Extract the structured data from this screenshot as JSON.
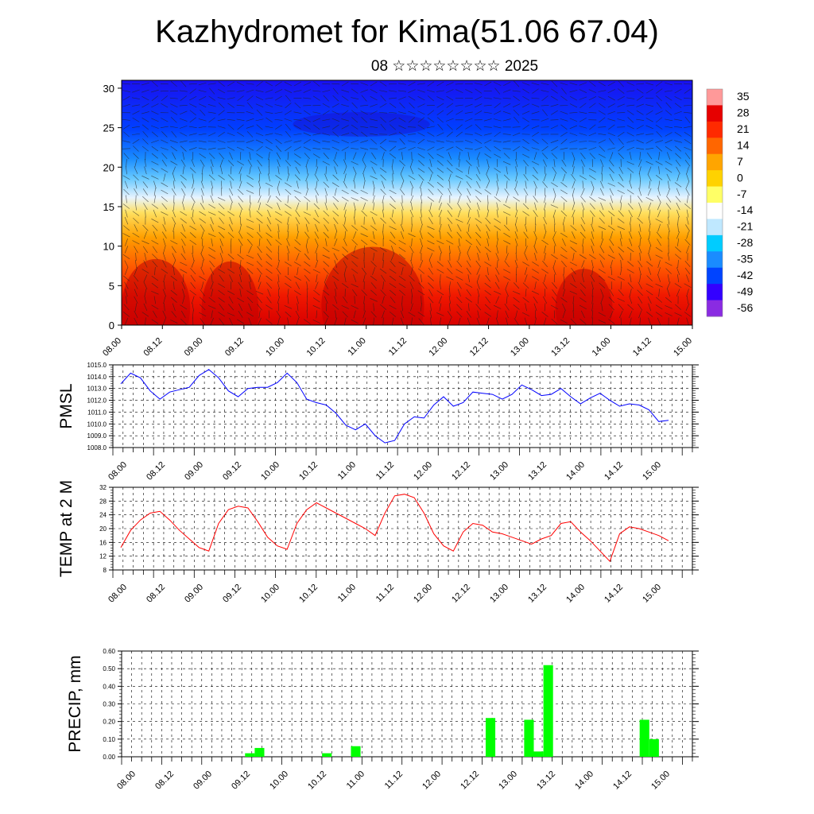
{
  "header": {
    "title": "Kazhydromet for Kima(51.06 67.04)",
    "subtitle": "08 ☆☆☆☆☆☆☆☆ 2025"
  },
  "colors": {
    "pmsl_line": "#0000ff",
    "temp_line": "#ff0000",
    "precip_bar": "#00ff00",
    "colorbar": [
      "#8a2be2",
      "#3300ff",
      "#0044ff",
      "#1a8cff",
      "#00ccff",
      "#bfe8ff",
      "#ffffff",
      "#ffff66",
      "#ffd200",
      "#ffa500",
      "#ff6600",
      "#ff2a00",
      "#e60000",
      "#ff9999"
    ]
  },
  "chart_data": [
    {
      "type": "heatmap",
      "x_ticks": [
        "08.00",
        "08.12",
        "09.00",
        "09.12",
        "10.00",
        "10.12",
        "11.00",
        "11.12",
        "12.00",
        "12.12",
        "13.00",
        "13.12",
        "14.00",
        "14.12",
        "15.00"
      ],
      "y_ticks": [
        "0",
        "5",
        "10",
        "15",
        "20",
        "25",
        "30"
      ],
      "ylim": [
        0,
        31
      ],
      "colorbar_labels": [
        "35",
        "28",
        "21",
        "14",
        "7",
        "0",
        "-7",
        "-14",
        "-21",
        "-28",
        "-35",
        "-42",
        "-49",
        "-56"
      ],
      "note_values": "temperature field with wind barbs"
    },
    {
      "type": "line",
      "ylabel": "PMSL",
      "ylim": [
        1008,
        1015
      ],
      "y_ticks": [
        "1008.0",
        "1009.0",
        "1010.0",
        "1011.0",
        "1012.0",
        "1013.0",
        "1014.0",
        "1015.0"
      ],
      "x_ticks": [
        "08.00",
        "08.12",
        "09.00",
        "09.12",
        "10.00",
        "10.12",
        "11.00",
        "11.12",
        "12.00",
        "12.12",
        "13.00",
        "13.12",
        "14.00",
        "14.12",
        "15.00"
      ],
      "values": [
        1013.4,
        1014.3,
        1013.9,
        1012.8,
        1012.1,
        1012.7,
        1012.9,
        1013.1,
        1014.1,
        1014.6,
        1013.9,
        1012.8,
        1012.3,
        1013.0,
        1013.1,
        1013.1,
        1013.5,
        1014.3,
        1013.5,
        1012.1,
        1011.8,
        1011.6,
        1010.9,
        1009.9,
        1009.5,
        1010.0,
        1009.0,
        1008.4,
        1008.6,
        1010.0,
        1010.6,
        1010.5,
        1011.6,
        1012.3,
        1011.5,
        1011.8,
        1012.7,
        1012.6,
        1012.5,
        1012.1,
        1012.5,
        1013.3,
        1012.9,
        1012.4,
        1012.5,
        1013.0,
        1012.3,
        1011.7,
        1012.2,
        1012.6,
        1012.0,
        1011.5,
        1011.7,
        1011.6,
        1011.2,
        1010.2,
        1010.3
      ]
    },
    {
      "type": "line",
      "ylabel": "TEMP at 2 M",
      "ylim": [
        8,
        32
      ],
      "y_ticks": [
        "8",
        "12",
        "16",
        "20",
        "24",
        "28",
        "32"
      ],
      "x_ticks": [
        "08.00",
        "08.12",
        "09.00",
        "09.12",
        "10.00",
        "10.12",
        "11.00",
        "11.12",
        "12.00",
        "12.12",
        "13.00",
        "13.12",
        "14.00",
        "14.12",
        "15.00"
      ],
      "values": [
        14.5,
        19.5,
        22.5,
        24.5,
        25.0,
        22.5,
        19.5,
        17.0,
        14.5,
        13.5,
        21.5,
        25.5,
        26.5,
        26.0,
        22.0,
        17.5,
        15.0,
        14.0,
        21.5,
        25.5,
        27.5,
        26.0,
        24.5,
        23.0,
        21.5,
        20.0,
        18.0,
        24.5,
        29.5,
        30.0,
        29.0,
        24.5,
        18.5,
        15.0,
        13.5,
        19.0,
        21.5,
        21.0,
        19.0,
        18.5,
        17.5,
        16.5,
        15.5,
        17.0,
        18.0,
        21.5,
        22.0,
        19.0,
        16.5,
        13.5,
        10.5,
        18.5,
        20.5,
        20.0,
        19.0,
        18.0,
        16.5
      ]
    },
    {
      "type": "bar",
      "ylabel": "PRECIP, mm",
      "ylim": [
        0,
        0.6
      ],
      "y_ticks": [
        "0.00",
        "0.10",
        "0.20",
        "0.30",
        "0.40",
        "0.50",
        "0.60"
      ],
      "x_ticks": [
        "08.00",
        "08.12",
        "09.00",
        "09.12",
        "10.00",
        "10.12",
        "11.00",
        "11.12",
        "12.00",
        "12.12",
        "13.00",
        "13.12",
        "14.00",
        "14.12",
        "15.00"
      ],
      "bars": [
        {
          "x": 12.5,
          "value": 0.02
        },
        {
          "x": 13.5,
          "value": 0.05
        },
        {
          "x": 20.5,
          "value": 0.02
        },
        {
          "x": 23.5,
          "value": 0.06
        },
        {
          "x": 37.5,
          "value": 0.22
        },
        {
          "x": 41.5,
          "value": 0.21
        },
        {
          "x": 42.5,
          "value": 0.03
        },
        {
          "x": 43.5,
          "value": 0.52
        },
        {
          "x": 53.5,
          "value": 0.21
        },
        {
          "x": 54.5,
          "value": 0.1
        }
      ]
    }
  ]
}
